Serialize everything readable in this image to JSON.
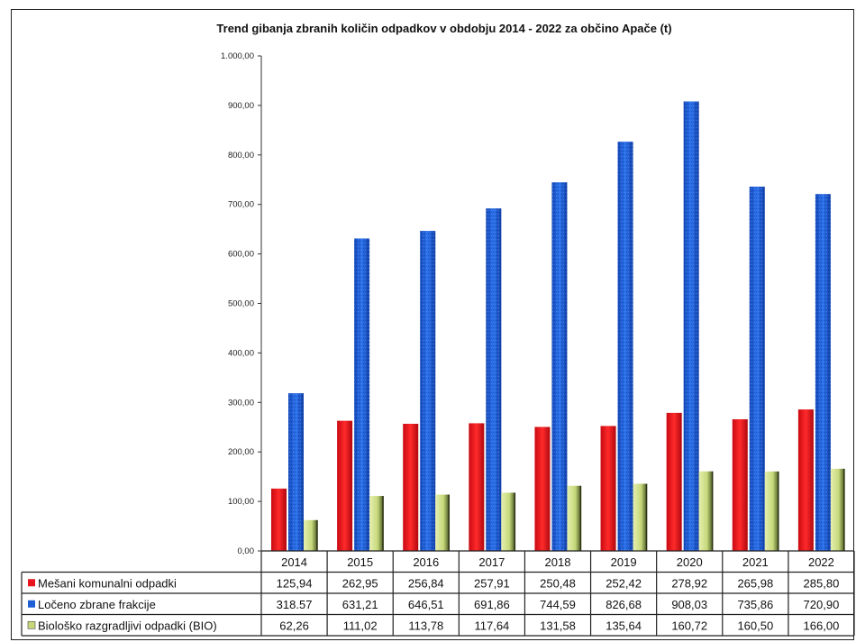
{
  "chart_data": {
    "type": "bar",
    "title": "Trend gibanja zbranih količin odpadkov v obdobju 2014 - 2022 za občino Apače (t)",
    "categories": [
      "2014",
      "2015",
      "2016",
      "2017",
      "2018",
      "2019",
      "2020",
      "2021",
      "2022"
    ],
    "ylim": [
      0,
      1000
    ],
    "yticks": [
      "0,00",
      "100,00",
      "200,00",
      "300,00",
      "400,00",
      "500,00",
      "600,00",
      "700,00",
      "800,00",
      "900,00",
      "1.000,00"
    ],
    "grid": false,
    "legend": "data-table",
    "series": [
      {
        "name": "Mešani komunalni odpadki",
        "color": "#e8141e",
        "values": [
          125.94,
          262.95,
          256.84,
          257.91,
          250.48,
          252.42,
          278.92,
          265.98,
          285.8
        ],
        "labels": [
          "125,94",
          "262,95",
          "256,84",
          "257,91",
          "250,48",
          "252,42",
          "278,92",
          "265,98",
          "285,80"
        ]
      },
      {
        "name": "Ločeno zbrane frakcije",
        "color": "#1f5fd6",
        "values": [
          318.57,
          631.21,
          646.51,
          691.86,
          744.59,
          826.68,
          908.03,
          735.86,
          720.9
        ],
        "labels": [
          "318.57",
          "631,21",
          "646,51",
          "691,86",
          "744,59",
          "826,68",
          "908,03",
          "735,86",
          "720,90"
        ]
      },
      {
        "name": "Biološko razgradljivi odpadki (BIO)",
        "color": "#d8e89a",
        "values": [
          62.26,
          111.02,
          113.78,
          117.64,
          131.58,
          135.64,
          160.72,
          160.5,
          166.0
        ],
        "labels": [
          "62,26",
          "111,02",
          "113,78",
          "117,64",
          "131,58",
          "135,64",
          "160,72",
          "160,50",
          "166,00"
        ]
      }
    ]
  }
}
